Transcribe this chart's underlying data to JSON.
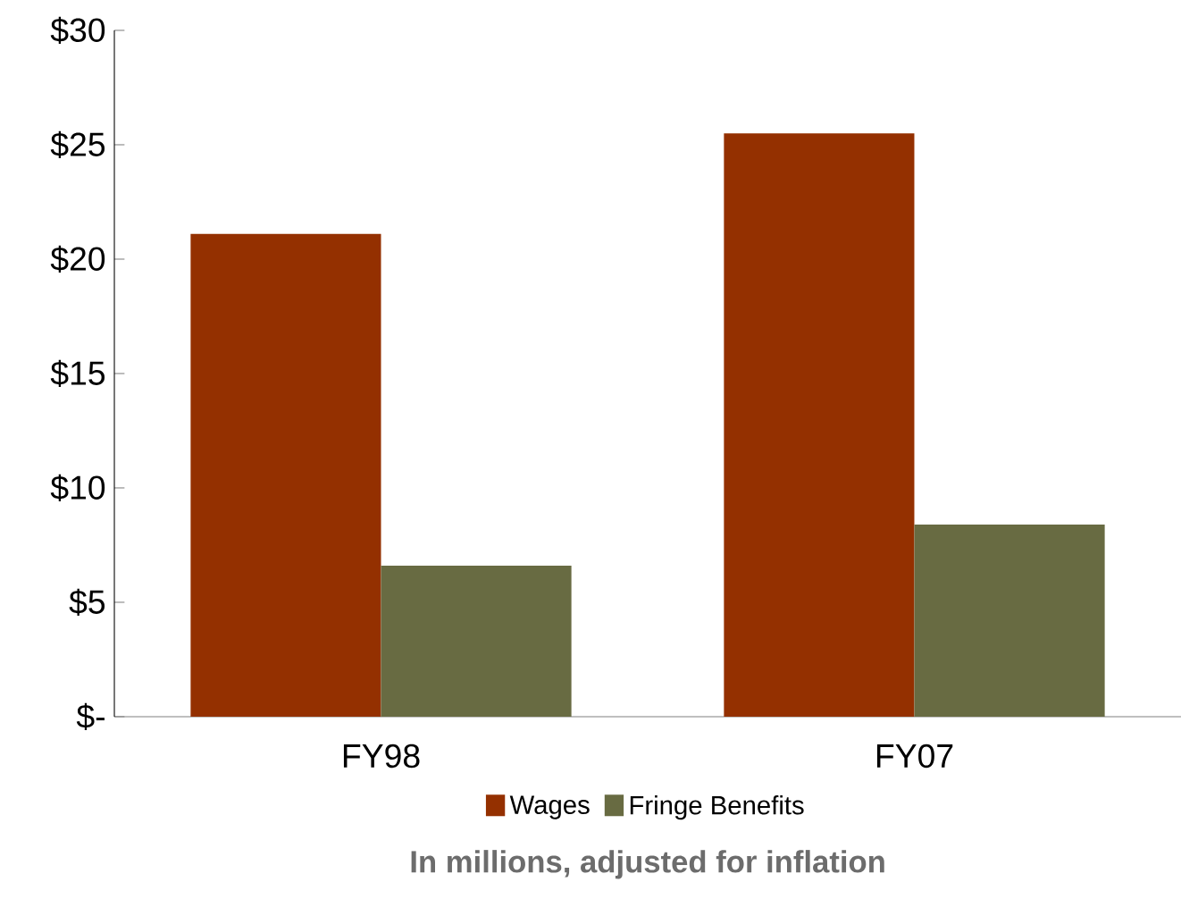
{
  "chart_data": {
    "type": "bar",
    "categories": [
      "FY98",
      "FY07"
    ],
    "series": [
      {
        "name": "Wages",
        "color": "#943000",
        "values": [
          21.1,
          25.5
        ]
      },
      {
        "name": "Fringe Benefits",
        "color": "#686b42",
        "values": [
          6.6,
          8.4
        ]
      }
    ],
    "ylim": [
      0,
      30
    ],
    "yticks": [
      {
        "value": 0,
        "label": "$-"
      },
      {
        "value": 5,
        "label": "$5"
      },
      {
        "value": 10,
        "label": "$10"
      },
      {
        "value": 15,
        "label": "$15"
      },
      {
        "value": 20,
        "label": "$20"
      },
      {
        "value": 25,
        "label": "$25"
      },
      {
        "value": 30,
        "label": "$30"
      }
    ],
    "legend": "bottom",
    "grid": false,
    "annotations": [
      "In millions, adjusted for inflation"
    ]
  }
}
